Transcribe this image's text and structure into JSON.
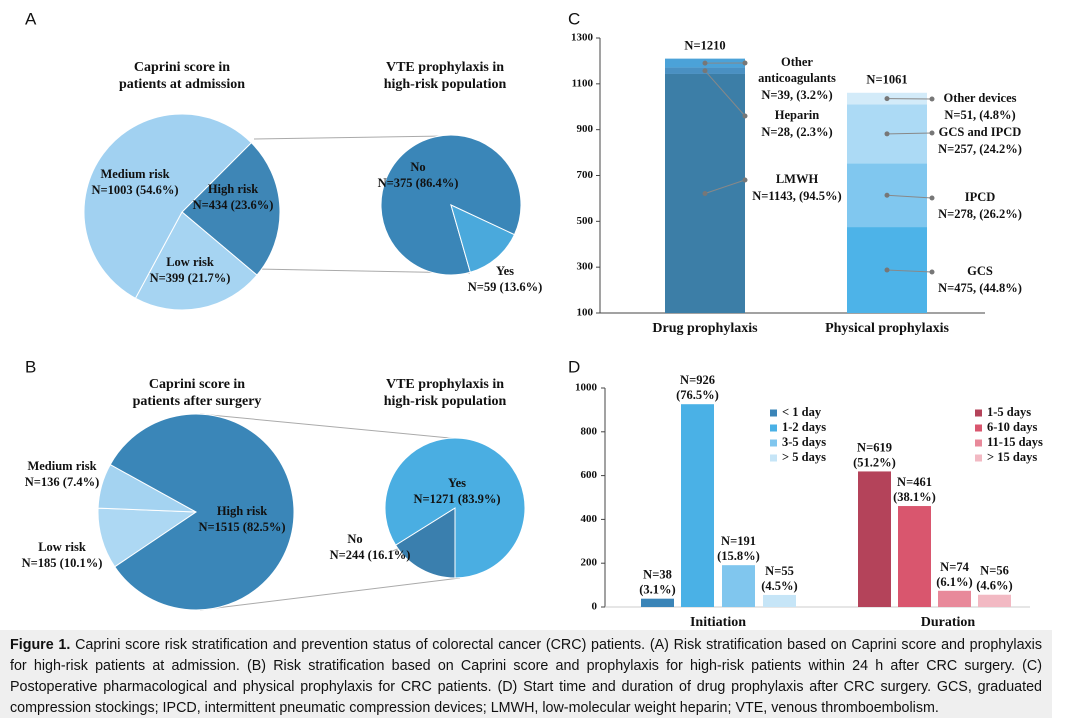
{
  "panels": [
    "A",
    "B",
    "C",
    "D"
  ],
  "chart_data": [
    {
      "type": "pie",
      "title": [
        "Caprini score in",
        "patients at admission"
      ],
      "categories": [
        "High risk",
        "Low risk",
        "Medium risk"
      ],
      "values": [
        434,
        399,
        1003
      ],
      "value_labels": [
        "N=434 (23.6%)",
        "N=399 (21.7%)",
        "N=1003 (54.6%)"
      ],
      "colors": [
        "#3e86b6",
        "#a6d4f2",
        "#a1d1f1"
      ]
    },
    {
      "type": "pie",
      "title": [
        "VTE prophylaxis in",
        "high-risk population"
      ],
      "categories": [
        "No",
        "Yes"
      ],
      "values": [
        375,
        59
      ],
      "value_labels": [
        "N=375 (86.4%)",
        "N=59 (13.6%)"
      ],
      "colors": [
        "#3a86b8",
        "#4aa9dc"
      ]
    },
    {
      "type": "pie",
      "title": [
        "Caprini score in",
        "patients after surgery"
      ],
      "categories": [
        "Low risk",
        "Medium risk",
        "High risk"
      ],
      "values": [
        185,
        136,
        1515
      ],
      "value_labels": [
        "N=185 (10.1%)",
        "N=136 (7.4%)",
        "N=1515 (82.5%)"
      ],
      "colors": [
        "#add8f3",
        "#a4d3f1",
        "#3a86b8"
      ]
    },
    {
      "type": "pie",
      "title": [
        "VTE prophylaxis in",
        "high-risk population"
      ],
      "categories": [
        "No",
        "Yes"
      ],
      "values": [
        244,
        1271
      ],
      "value_labels": [
        "N=244 (16.1%)",
        "N=1271 (83.9%)"
      ],
      "colors": [
        "#3a7fae",
        "#4aaee2"
      ]
    },
    {
      "type": "stacked_bar",
      "categories": [
        "Drug prophylaxis",
        "Physical prophylaxis"
      ],
      "ylim": [
        100,
        1300
      ],
      "yticks": [
        100,
        300,
        500,
        700,
        900,
        1100,
        1300
      ],
      "totals": [
        1210,
        1061
      ],
      "total_labels": [
        "N=1210",
        "N=1061"
      ],
      "series": [
        {
          "name": "LMWH",
          "color": "#3c7ea7",
          "values": [
            1143,
            null
          ],
          "value_labels": [
            "N=1143, (94.5%)",
            null
          ]
        },
        {
          "name": "Heparin",
          "color": "#4a90c2",
          "values": [
            28,
            null
          ],
          "value_labels": [
            "N=28, (2.3%)",
            null
          ]
        },
        {
          "name": "Other anticoagulants",
          "color": "#4ba2d8",
          "values": [
            39,
            null
          ],
          "value_labels": [
            "N=39, (3.2%)",
            null
          ]
        },
        {
          "name": "GCS",
          "color": "#4db3e8",
          "values": [
            null,
            475
          ],
          "value_labels": [
            null,
            "N=475, (44.8%)"
          ]
        },
        {
          "name": "IPCD",
          "color": "#80c7ef",
          "values": [
            null,
            278
          ],
          "value_labels": [
            null,
            "N=278, (26.2%)"
          ]
        },
        {
          "name": "GCS and IPCD",
          "color": "#acdaf5",
          "values": [
            null,
            257
          ],
          "value_labels": [
            null,
            "N=257, (24.2%)"
          ]
        },
        {
          "name": "Other devices",
          "color": "#d3ebf9",
          "values": [
            null,
            51
          ],
          "value_labels": [
            null,
            "N=51, (4.8%)"
          ]
        }
      ]
    },
    {
      "type": "grouped_bar",
      "categories": [
        "Initiation",
        "Duration"
      ],
      "ylim": [
        0,
        1000
      ],
      "yticks": [
        0,
        200,
        400,
        600,
        800,
        1000
      ],
      "series": [
        {
          "name": "< 1 day",
          "color": "#3a84b7",
          "values": [
            38,
            null
          ],
          "value_labels": [
            "N=38 (3.1%)",
            null
          ]
        },
        {
          "name": "1-2 days",
          "color": "#4ab1e6",
          "values": [
            926,
            null
          ],
          "value_labels": [
            "N=926 (76.5%)",
            null
          ]
        },
        {
          "name": "3-5 days",
          "color": "#80c6ee",
          "values": [
            191,
            null
          ],
          "value_labels": [
            "N=191 (15.8%)",
            null
          ]
        },
        {
          "name": "> 5 days",
          "color": "#c6e5f7",
          "values": [
            55,
            null
          ],
          "value_labels": [
            "N=55 (4.5%)",
            null
          ]
        },
        {
          "name": "1-5 days",
          "color": "#b4435a",
          "values": [
            null,
            619
          ],
          "value_labels": [
            null,
            "N=619 (51.2%)"
          ]
        },
        {
          "name": "6-10 days",
          "color": "#d9566e",
          "values": [
            null,
            461
          ],
          "value_labels": [
            null,
            "N=461 (38.1%)"
          ]
        },
        {
          "name": "11-15 days",
          "color": "#e8899a",
          "values": [
            null,
            74
          ],
          "value_labels": [
            null,
            "N=74 (6.1%)"
          ]
        },
        {
          "name": "> 15 days",
          "color": "#f2b9c3",
          "values": [
            null,
            56
          ],
          "value_labels": [
            null,
            "N=56 (4.6%)"
          ]
        }
      ]
    }
  ],
  "caption": {
    "label": "Figure 1.",
    "text": "Caprini score risk stratification and prevention status of colorectal cancer (CRC) patients. (A) Risk stratification based on Caprini score and prophylaxis for high-risk patients at admission. (B) Risk stratification based on Caprini score and prophylaxis for high-risk patients within 24 h after CRC surgery. (C) Postoperative pharmacological and physical prophylaxis for CRC patients. (D) Start time and duration of drug prophylaxis after CRC surgery. GCS, graduated compression stockings; IPCD, intermittent pneumatic compression devices; LMWH, low-molecular weight heparin; VTE, venous thromboembolism."
  }
}
